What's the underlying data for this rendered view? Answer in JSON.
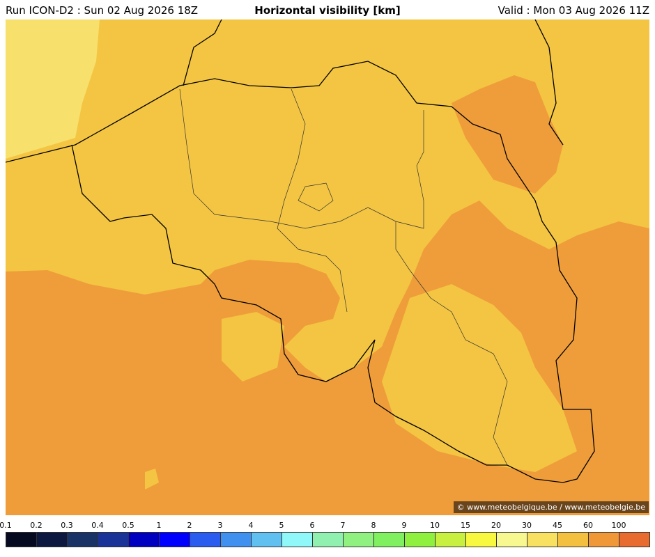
{
  "header": {
    "left": "Run ICON-D2 : Sun 02 Aug 2026 18Z",
    "title": "Horizontal visibility [km]",
    "right": "Valid : Mon 03 Aug 2026 11Z"
  },
  "map": {
    "credit": "© www.meteobelgique.be / www.meteobelgie.be"
  },
  "legend": {
    "labels": [
      "0.1",
      "0.2",
      "0.3",
      "0.4",
      "0.5",
      "1",
      "2",
      "3",
      "4",
      "5",
      "6",
      "7",
      "8",
      "9",
      "10",
      "15",
      "20",
      "30",
      "45",
      "60",
      "100"
    ],
    "colors": [
      "#050a20",
      "#0c1840",
      "#1a3366",
      "#1a3399",
      "#0000c0",
      "#0000ff",
      "#2a5cf0",
      "#4090f0",
      "#60c0f0",
      "#90f8f8",
      "#90f0b0",
      "#90f080",
      "#80f060",
      "#90f040",
      "#c8f040",
      "#f8f840",
      "#f8f890",
      "#f8e060",
      "#f4c040",
      "#f09838",
      "#e86c30"
    ]
  }
}
